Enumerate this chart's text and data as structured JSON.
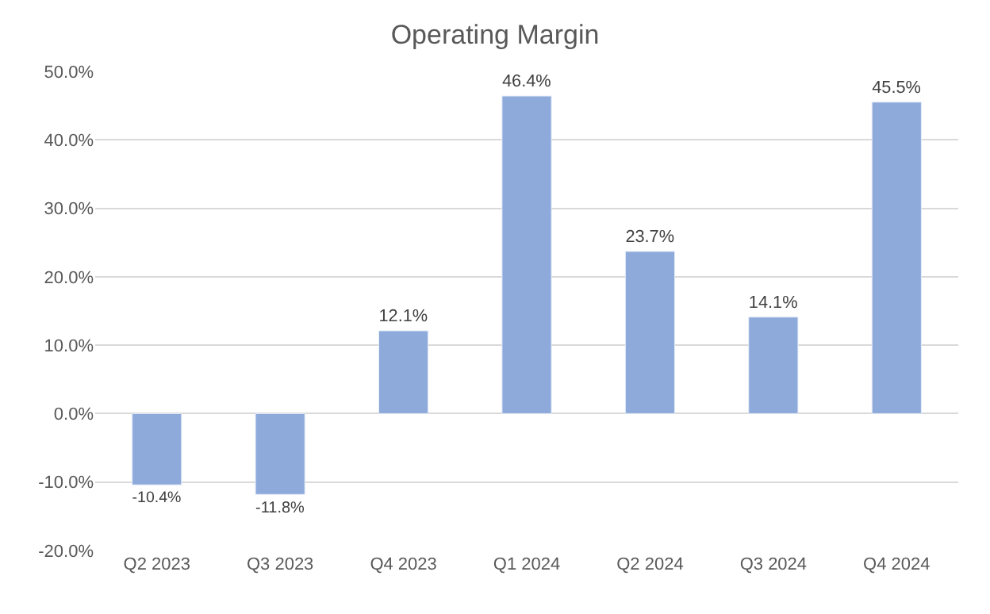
{
  "chart_data": {
    "type": "bar",
    "title": "Operating Margin",
    "categories": [
      "Q2 2023",
      "Q3 2023",
      "Q4 2023",
      "Q1 2024",
      "Q2 2024",
      "Q3 2024",
      "Q4 2024"
    ],
    "values": [
      -10.4,
      -11.8,
      12.1,
      46.4,
      23.7,
      14.1,
      45.5
    ],
    "value_labels": [
      "-10.4%",
      "-11.8%",
      "12.1%",
      "46.4%",
      "23.7%",
      "14.1%",
      "45.5%"
    ],
    "color": "#8eaadb",
    "ylim": [
      -20,
      50
    ],
    "yticks": [
      {
        "value": -20,
        "label": "-20.0%"
      },
      {
        "value": -10,
        "label": "-10.0%"
      },
      {
        "value": 0,
        "label": "0.0%"
      },
      {
        "value": 10,
        "label": "10.0%"
      },
      {
        "value": 20,
        "label": "20.0%"
      },
      {
        "value": 30,
        "label": "30.0%"
      },
      {
        "value": 40,
        "label": "40.0%"
      },
      {
        "value": 50,
        "label": "50.0%"
      }
    ],
    "grid": "y",
    "legend": false
  }
}
